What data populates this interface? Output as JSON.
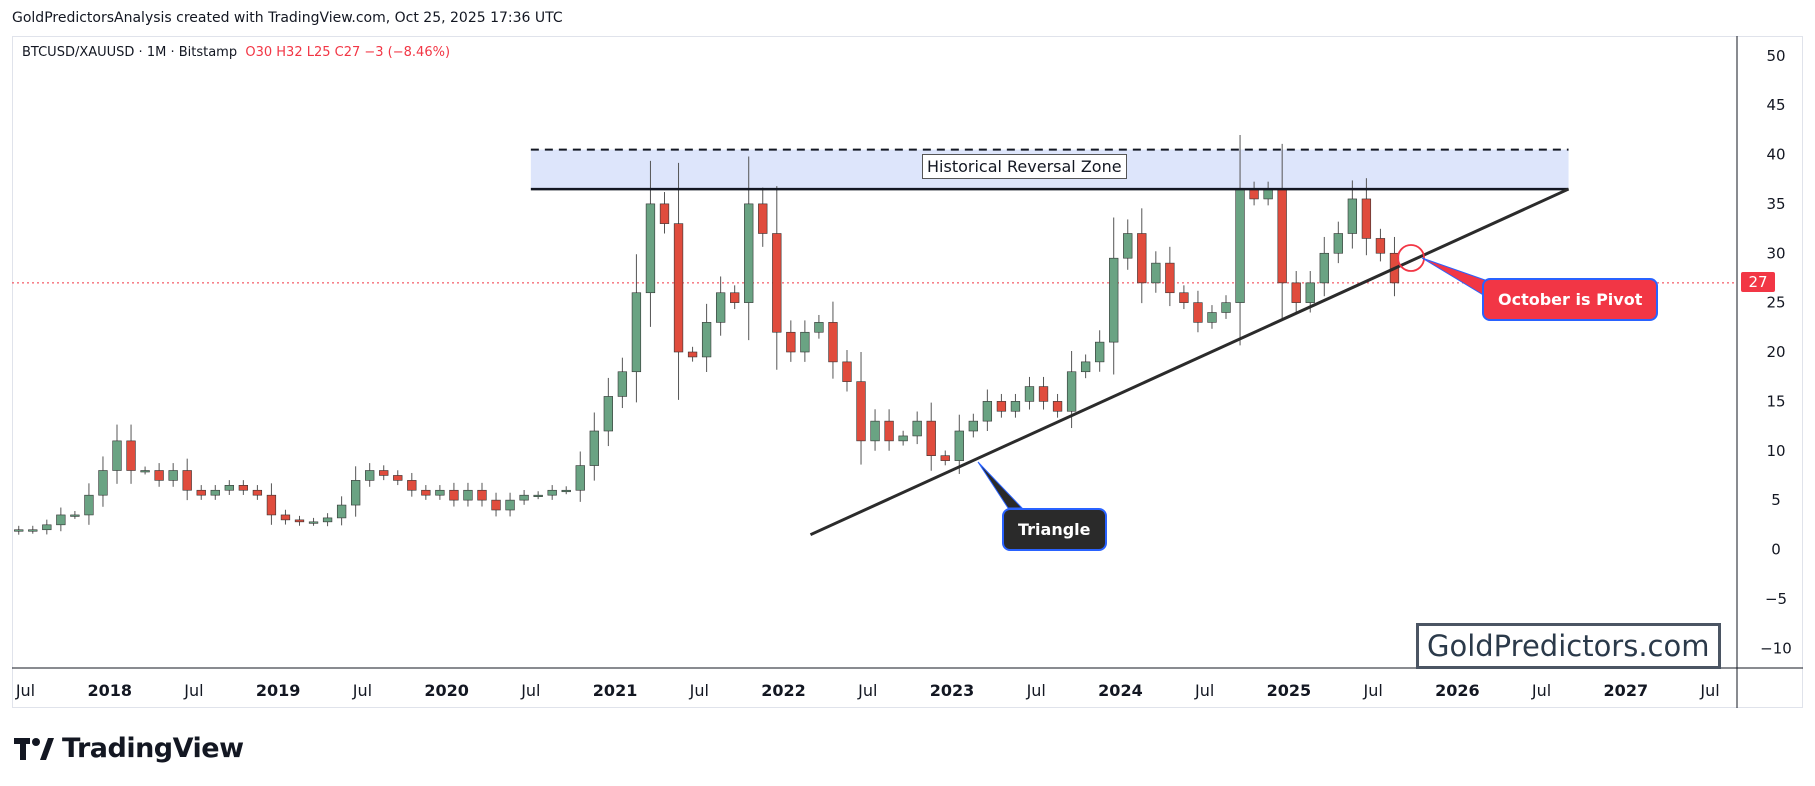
{
  "header": {
    "attribution": "GoldPredictorsAnalysis created with TradingView.com, Oct 25, 2025 17:36 UTC"
  },
  "symbol": {
    "name": "BTCUSD/XAUUSD · 1M · Bitstamp",
    "ohlc": "O30  H32  L25  C27  −3 (−8.46%)"
  },
  "annotations": {
    "zone_label": "Historical Reversal Zone",
    "triangle_label": "Triangle",
    "pivot_label": "October is Pivot",
    "watermark": "GoldPredictors.com",
    "current_price": "27"
  },
  "branding": {
    "name": "TradingView"
  },
  "colors": {
    "up": "#6aa383",
    "down": "#e04c3d",
    "wick": "#555555",
    "zone": "#dde5fb",
    "price_line": "#f23645",
    "accent": "#2962ff"
  },
  "chart_data": {
    "type": "candlestick",
    "title": "BTCUSD/XAUUSD · 1M · Bitstamp",
    "ylim": [
      -12,
      52
    ],
    "y_ticks": [
      50,
      45,
      40,
      35,
      30,
      25,
      20,
      15,
      10,
      5,
      0,
      -5,
      -10
    ],
    "x_ticks": [
      {
        "label": "Jul",
        "t": 2017.5
      },
      {
        "label": "2018",
        "t": 2018.0
      },
      {
        "label": "Jul",
        "t": 2018.5
      },
      {
        "label": "2019",
        "t": 2019.0
      },
      {
        "label": "Jul",
        "t": 2019.5
      },
      {
        "label": "2020",
        "t": 2020.0
      },
      {
        "label": "Jul",
        "t": 2020.5
      },
      {
        "label": "2021",
        "t": 2021.0
      },
      {
        "label": "Jul",
        "t": 2021.5
      },
      {
        "label": "2022",
        "t": 2022.0
      },
      {
        "label": "Jul",
        "t": 2022.5
      },
      {
        "label": "2023",
        "t": 2023.0
      },
      {
        "label": "Jul",
        "t": 2023.5
      },
      {
        "label": "2024",
        "t": 2024.0
      },
      {
        "label": "Jul",
        "t": 2024.5
      },
      {
        "label": "2025",
        "t": 2025.0
      },
      {
        "label": "Jul",
        "t": 2025.5
      },
      {
        "label": "2026",
        "t": 2026.0
      },
      {
        "label": "Jul",
        "t": 2026.5
      },
      {
        "label": "2027",
        "t": 2027.0
      },
      {
        "label": "Jul",
        "t": 2027.5
      }
    ],
    "t_range": [
      2017.42,
      2027.66
    ],
    "start": 2017.46,
    "closes": [
      2,
      2,
      2.5,
      3.5,
      3.5,
      5.5,
      8,
      11,
      8,
      8,
      7,
      8,
      6,
      5.5,
      6,
      6.5,
      6,
      5.5,
      3.5,
      3,
      2.8,
      2.8,
      3.2,
      4.5,
      7,
      8,
      7.5,
      7,
      6,
      5.5,
      6,
      5,
      6,
      5,
      4,
      5,
      5.5,
      5.5,
      6,
      6,
      8.5,
      12,
      15.5,
      18,
      26,
      35,
      33,
      20,
      19.5,
      23,
      26,
      25,
      35,
      32,
      22,
      20,
      22,
      23,
      19,
      17,
      11,
      13,
      11,
      11.5,
      13,
      9.5,
      9,
      12,
      13,
      15,
      14,
      15,
      16.5,
      15,
      14,
      18,
      19,
      21,
      29.5,
      32,
      27,
      29,
      26,
      25,
      23,
      24,
      25,
      36.5,
      35.5,
      36.5,
      27,
      25,
      27,
      30,
      32,
      35.5,
      31.5,
      30,
      27
    ],
    "levels": {
      "resistance": 36.5,
      "zone_top": 40.5,
      "current_price": 27
    },
    "trendline": {
      "from": {
        "t": 2022.16,
        "v": 1.5
      },
      "to": {
        "t": 2026.66,
        "v": 36.5
      }
    },
    "resistance_span": {
      "from": 2020.5,
      "to": 2026.66
    }
  }
}
